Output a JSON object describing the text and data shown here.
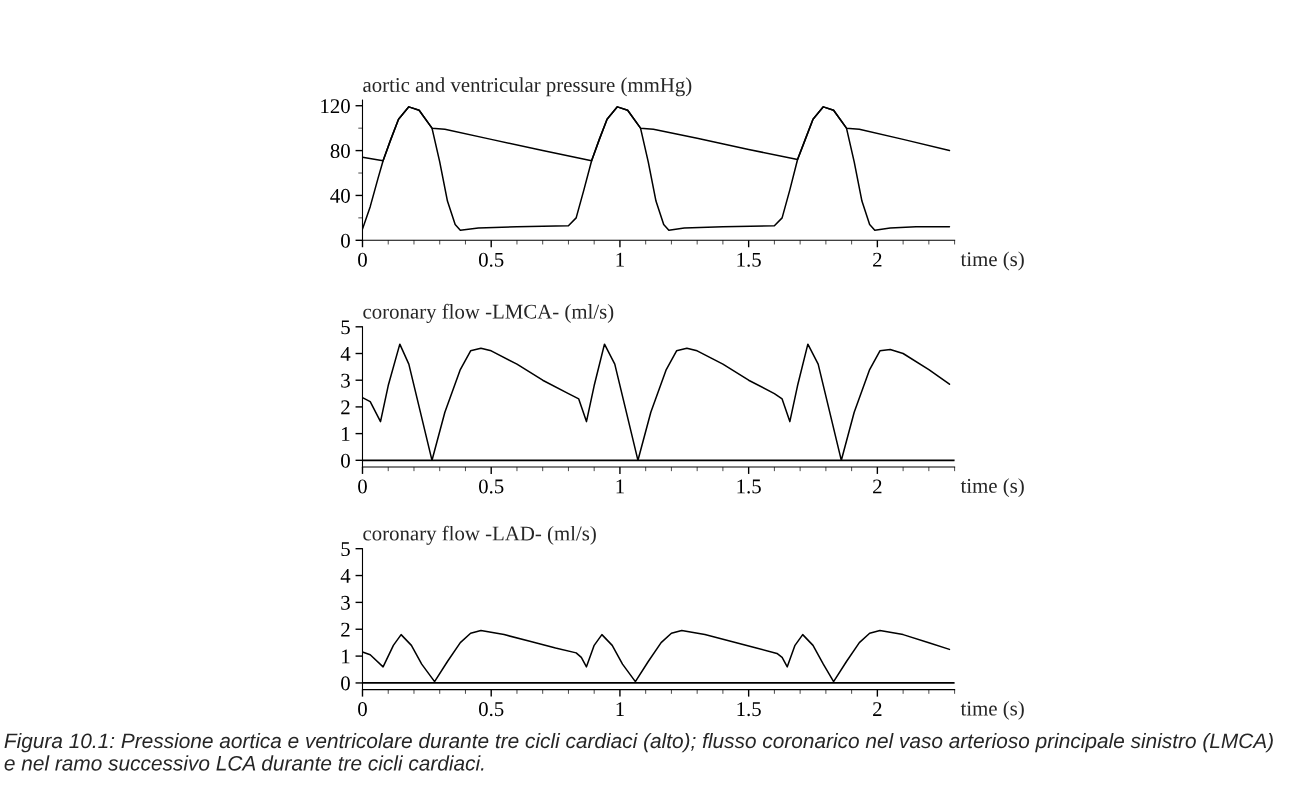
{
  "chart_data": [
    {
      "type": "line",
      "title": "aortic and ventricular pressure (mmHg)",
      "xlabel": "time (s)",
      "xlim": [
        0,
        2.3
      ],
      "xticks": [
        0,
        0.5,
        1,
        1.5,
        2
      ],
      "ylim": [
        0,
        125
      ],
      "yticks": [
        0,
        40,
        80,
        120
      ],
      "grid": false,
      "legend": false,
      "series": [
        {
          "color": "#000000",
          "x": [
            0,
            0.08,
            0.11,
            0.14,
            0.18,
            0.22,
            0.27,
            0.32,
            0.5,
            0.7,
            0.89,
            0.92,
            0.95,
            0.99,
            1.03,
            1.08,
            1.13,
            1.3,
            1.5,
            1.69,
            1.72,
            1.75,
            1.79,
            1.83,
            1.88,
            1.93,
            2.1,
            2.28
          ],
          "values": [
            74,
            71,
            90,
            108,
            119,
            116,
            100,
            99,
            90,
            80,
            71,
            90,
            108,
            119,
            116,
            100,
            99,
            91,
            81,
            72,
            90,
            108,
            119,
            116,
            100,
            99,
            90,
            80
          ]
        },
        {
          "color": "#000000",
          "x": [
            0,
            0.03,
            0.06,
            0.08,
            0.11,
            0.14,
            0.18,
            0.22,
            0.27,
            0.3,
            0.33,
            0.36,
            0.38,
            0.45,
            0.6,
            0.8,
            0.83,
            0.86,
            0.89,
            0.92,
            0.95,
            0.99,
            1.03,
            1.08,
            1.11,
            1.14,
            1.17,
            1.19,
            1.25,
            1.4,
            1.6,
            1.63,
            1.66,
            1.69,
            1.72,
            1.75,
            1.79,
            1.83,
            1.88,
            1.91,
            1.94,
            1.97,
            1.99,
            2.05,
            2.15,
            2.28
          ],
          "values": [
            10,
            30,
            55,
            71,
            90,
            108,
            119,
            116,
            100,
            70,
            35,
            14,
            9,
            11,
            12,
            13,
            20,
            45,
            71,
            90,
            108,
            119,
            116,
            100,
            70,
            35,
            14,
            9,
            11,
            12,
            13,
            20,
            45,
            72,
            90,
            108,
            119,
            116,
            100,
            70,
            35,
            14,
            9,
            11,
            12,
            12
          ]
        }
      ]
    },
    {
      "type": "line",
      "title": "coronary flow -LMCA- (ml/s)",
      "xlabel": "time (s)",
      "xlim": [
        0,
        2.3
      ],
      "xticks": [
        0,
        0.5,
        1,
        1.5,
        2
      ],
      "ylim": [
        -0.25,
        5
      ],
      "yticks": [
        0,
        1,
        2,
        3,
        4,
        5
      ],
      "grid": false,
      "legend": false,
      "ref_lines": [
        {
          "axis": "y",
          "value": 0,
          "color": "#000000"
        }
      ],
      "series": [
        {
          "color": "#000000",
          "x": [
            0,
            0.03,
            0.07,
            0.1,
            0.145,
            0.18,
            0.22,
            0.27,
            0.32,
            0.38,
            0.42,
            0.46,
            0.5,
            0.6,
            0.7,
            0.8,
            0.84,
            0.87,
            0.9,
            0.94,
            0.98,
            1.02,
            1.07,
            1.12,
            1.18,
            1.22,
            1.26,
            1.3,
            1.4,
            1.5,
            1.6,
            1.63,
            1.66,
            1.69,
            1.73,
            1.77,
            1.81,
            1.86,
            1.91,
            1.97,
            2.01,
            2.05,
            2.1,
            2.2,
            2.28
          ],
          "values": [
            2.35,
            2.2,
            1.45,
            2.8,
            4.35,
            3.6,
            2.0,
            0.0,
            1.8,
            3.4,
            4.1,
            4.2,
            4.1,
            3.6,
            3.0,
            2.5,
            2.3,
            1.45,
            2.8,
            4.35,
            3.6,
            2.0,
            0.0,
            1.8,
            3.4,
            4.1,
            4.2,
            4.1,
            3.6,
            3.0,
            2.5,
            2.3,
            1.45,
            2.8,
            4.35,
            3.6,
            2.0,
            0.0,
            1.8,
            3.4,
            4.1,
            4.15,
            4.0,
            3.4,
            2.85
          ]
        }
      ]
    },
    {
      "type": "line",
      "title": "coronary flow -LAD- (ml/s)",
      "xlabel": "time (s)",
      "xlim": [
        0,
        2.3
      ],
      "xticks": [
        0,
        0.5,
        1,
        1.5,
        2
      ],
      "ylim": [
        -0.25,
        5
      ],
      "yticks": [
        0,
        1,
        2,
        3,
        4,
        5
      ],
      "grid": false,
      "legend": false,
      "ref_lines": [
        {
          "axis": "y",
          "value": 0,
          "color": "#000000"
        }
      ],
      "annotations": [
        "Figura 10.1: Pressione aortica e ventricolare durante tre cicli cardiaci (alto); flusso coronarico nel vaso arterioso principale sinistro (LMCA) e nel ramo successivo LCA durante tre cicli cardiaci."
      ],
      "series": [
        {
          "color": "#000000",
          "x": [
            0,
            0.03,
            0.08,
            0.12,
            0.15,
            0.19,
            0.23,
            0.28,
            0.33,
            0.38,
            0.42,
            0.46,
            0.55,
            0.65,
            0.75,
            0.83,
            0.85,
            0.87,
            0.9,
            0.93,
            0.97,
            1.01,
            1.06,
            1.11,
            1.16,
            1.2,
            1.24,
            1.33,
            1.43,
            1.53,
            1.61,
            1.63,
            1.65,
            1.68,
            1.71,
            1.75,
            1.79,
            1.83,
            1.88,
            1.93,
            1.97,
            2.01,
            2.1,
            2.2,
            2.28
          ],
          "values": [
            1.15,
            1.05,
            0.6,
            1.4,
            1.8,
            1.4,
            0.7,
            0.05,
            0.8,
            1.5,
            1.85,
            1.95,
            1.8,
            1.55,
            1.3,
            1.12,
            0.95,
            0.6,
            1.4,
            1.8,
            1.4,
            0.7,
            0.05,
            0.8,
            1.5,
            1.85,
            1.95,
            1.8,
            1.55,
            1.3,
            1.1,
            0.95,
            0.6,
            1.4,
            1.8,
            1.4,
            0.7,
            0.05,
            0.8,
            1.5,
            1.85,
            1.95,
            1.8,
            1.5,
            1.25
          ]
        }
      ]
    }
  ]
}
